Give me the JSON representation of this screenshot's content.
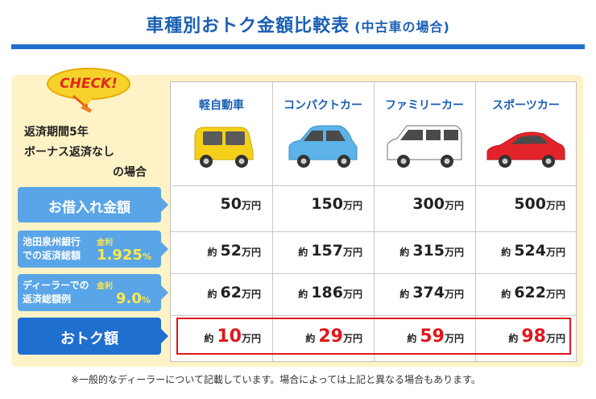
{
  "title": "車種別おトク金額比較表",
  "title_sub": "(中古車の場合)",
  "check_label": "CHECK!",
  "conditions": [
    "返済期間5年",
    "ボーナス返済なし",
    "の場合"
  ],
  "cars": [
    {
      "name": "軽自動車",
      "color": "#f4d01a",
      "icon": "kei-car-icon"
    },
    {
      "name": "コンパクトカー",
      "color": "#5bb3e8",
      "icon": "compact-car-icon"
    },
    {
      "name": "ファミリーカー",
      "color": "#ffffff",
      "icon": "family-car-icon"
    },
    {
      "name": "スポーツカー",
      "color": "#e3232a",
      "icon": "sports-car-icon"
    }
  ],
  "rows": {
    "loan": {
      "label": "お借入れ金額",
      "values": [
        "50",
        "150",
        "300",
        "500"
      ]
    },
    "bank": {
      "label1": "池田泉州銀行",
      "label2": "での返済総額",
      "rate_key": "金利",
      "rate": "1.925",
      "values": [
        "52",
        "157",
        "315",
        "524"
      ]
    },
    "dealer": {
      "label1": "ディーラーでの",
      "label2": "返済総額例",
      "rate_key": "金利",
      "rate": "9.0",
      "values": [
        "62",
        "186",
        "374",
        "622"
      ]
    },
    "savings": {
      "label": "おトク額",
      "values": [
        "10",
        "29",
        "59",
        "98"
      ]
    }
  },
  "unit": "万円",
  "approx": "約",
  "pct": "%",
  "note": "※一般的なディーラーについて記載しています。場合によっては上記と異なる場合もあります。"
}
